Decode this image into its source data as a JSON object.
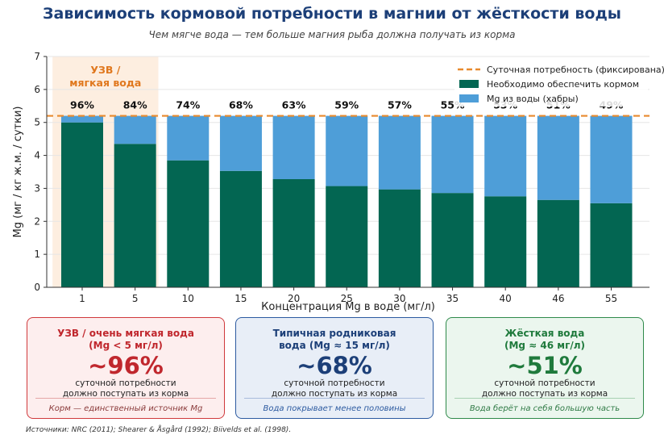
{
  "chart_data": {
    "type": "bar",
    "title": "Зависимость кормовой потребности в магнии от жёсткости воды",
    "subtitle": "Чем мягче вода — тем больше магния рыба должна получать из корма",
    "xlabel": "Концентрация Mg в воде (мг/л)",
    "ylabel": "Mg (мг / кг ж.м. / сутки)",
    "ylim": [
      0,
      7
    ],
    "yticks": [
      0,
      1,
      2,
      3,
      4,
      5,
      6,
      7
    ],
    "categories": [
      "1",
      "5",
      "10",
      "15",
      "20",
      "25",
      "30",
      "35",
      "40",
      "46",
      "55"
    ],
    "daily_requirement": 5.2,
    "series": [
      {
        "name": "Необходимо обеспечить кормом",
        "color": "#036652",
        "values": [
          5.0,
          4.35,
          3.85,
          3.53,
          3.28,
          3.07,
          2.97,
          2.86,
          2.76,
          2.65,
          2.55
        ]
      },
      {
        "name": "Mg из воды (хабры)",
        "color": "#4e9ed8",
        "values": [
          0.2,
          0.85,
          1.35,
          1.67,
          1.92,
          2.13,
          2.23,
          2.34,
          2.44,
          2.55,
          2.65
        ]
      }
    ],
    "percent_labels": [
      "96%",
      "84%",
      "74%",
      "68%",
      "63%",
      "59%",
      "57%",
      "55%",
      "53%",
      "51%",
      "49%"
    ],
    "legend": {
      "position": "top-right",
      "line_label": "Суточная потребность (фиксирована)",
      "line_color": "#e88a2e"
    },
    "highlight": {
      "label_line1": "УЗВ /",
      "label_line2": "мягкая вода",
      "color": "#fdeee0",
      "text_color": "#e0781e"
    }
  },
  "cards": [
    {
      "heading1": "УЗВ / очень мягкая вода",
      "heading2": "(Mg < 5 мг/л)",
      "big": "~96%",
      "text1": "суточной потребности",
      "text2": "должно поступать из корма",
      "foot": "Корм — единственный источник Mg"
    },
    {
      "heading1": "Типичная родниковая",
      "heading2": "вода (Mg ≈ 15 мг/л)",
      "big": "~68%",
      "text1": "суточной потребности",
      "text2": "должно поступать из корма",
      "foot": "Вода покрывает менее половины"
    },
    {
      "heading1": "Жёсткая вода",
      "heading2": "(Mg ≈ 46 мг/л)",
      "big": "~51%",
      "text1": "суточной потребности",
      "text2": "должно поступать из корма",
      "foot": "Вода берёт на себя большую часть"
    }
  ],
  "sources": "Источники: NRC (2011); Shearer & Åsgård (1992); Biivelds et al. (1998)."
}
